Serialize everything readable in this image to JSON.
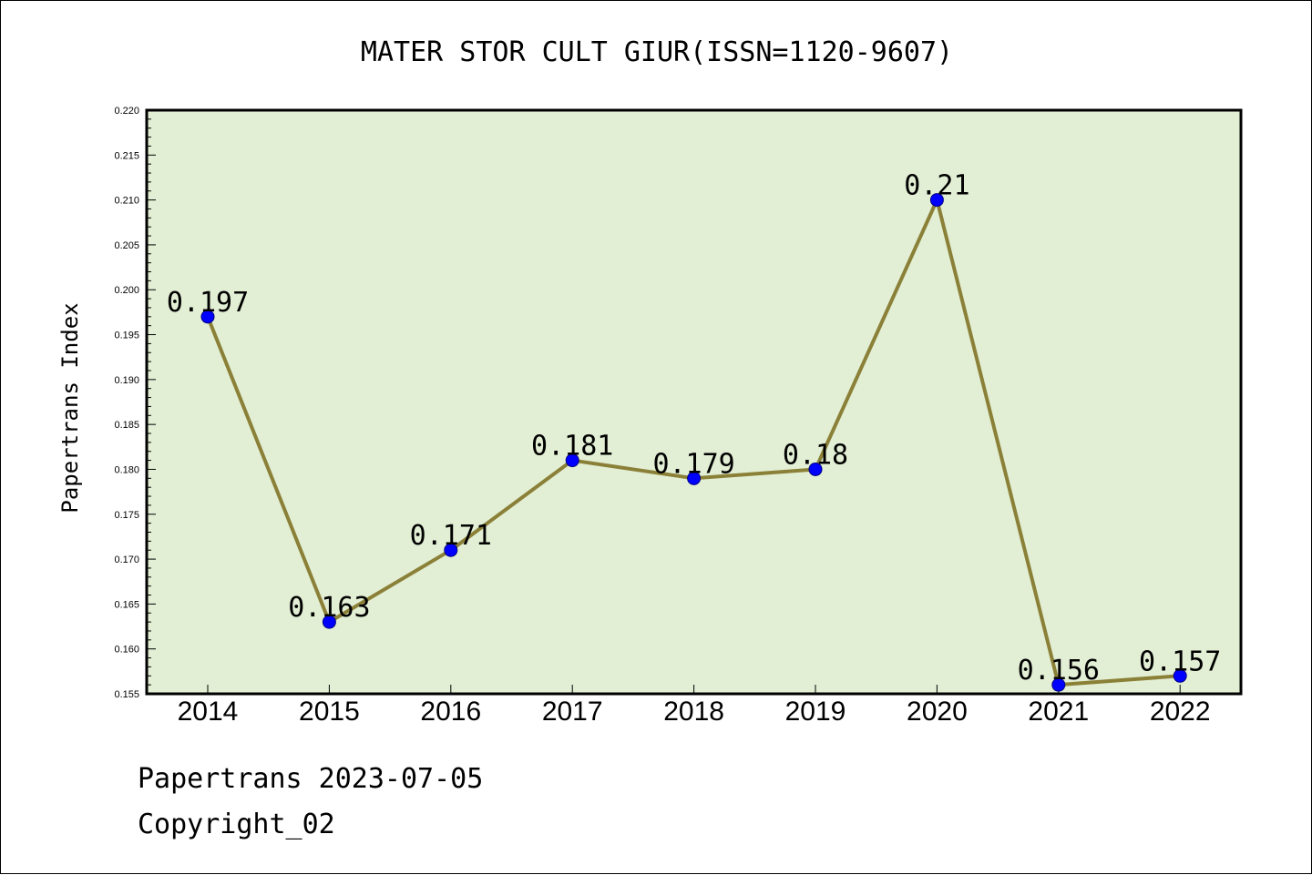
{
  "chart_data": {
    "type": "line",
    "title": "MATER STOR CULT GIUR(ISSN=1120-9607)",
    "xlabel": "",
    "ylabel": "Papertrans Index",
    "categories": [
      "2014",
      "2015",
      "2016",
      "2017",
      "2018",
      "2019",
      "2020",
      "2021",
      "2022"
    ],
    "series": [
      {
        "values": [
          0.197,
          0.163,
          0.171,
          0.181,
          0.179,
          0.18,
          0.21,
          0.156,
          0.157
        ],
        "data_labels": [
          "0.197",
          "0.163",
          "0.171",
          "0.181",
          "0.179",
          "0.18",
          "0.21",
          "0.156",
          "0.157"
        ]
      }
    ],
    "ylim": [
      0.155,
      0.22
    ],
    "yticks": [
      "0.155",
      "0.160",
      "0.165",
      "0.170",
      "0.175",
      "0.180",
      "0.185",
      "0.190",
      "0.195",
      "0.200",
      "0.205",
      "0.210",
      "0.215",
      "0.220"
    ],
    "grid": false,
    "legend": "none"
  },
  "footer": {
    "date_line": "Papertrans 2023-07-05",
    "copyright_line": "Copyright_02"
  },
  "colors": {
    "plot_background": "#e2efd4",
    "line": "#8b8038",
    "marker": "#0000ff",
    "marker_edge": "#000080"
  }
}
